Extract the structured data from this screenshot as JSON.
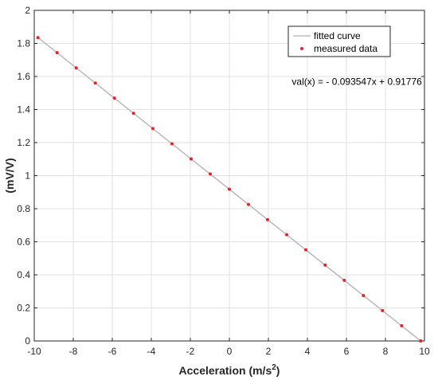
{
  "chart_data": {
    "type": "scatter",
    "title": "",
    "xlabel": "Acceleration (m/s",
    "xlabel_sup": "2",
    "xlabel_close": ")",
    "ylabel": "(mV/V)",
    "xlim": [
      -10,
      10
    ],
    "ylim": [
      0,
      2
    ],
    "xticks": [
      -10,
      -8,
      -6,
      -4,
      -2,
      0,
      2,
      4,
      6,
      8,
      10
    ],
    "yticks": [
      0,
      0.2,
      0.4,
      0.6,
      0.8,
      1,
      1.2,
      1.4,
      1.6,
      1.8,
      2
    ],
    "xtick_labels": [
      "-10",
      "-8",
      "-6",
      "-4",
      "-2",
      "0",
      "2",
      "4",
      "6",
      "8",
      "10"
    ],
    "ytick_labels": [
      "0",
      "0.2",
      "0.4",
      "0.6",
      "0.8",
      "1",
      "1.2",
      "1.4",
      "1.6",
      "1.8",
      "2"
    ],
    "grid": true,
    "legend_position": "top-right",
    "series": [
      {
        "name": "fitted curve",
        "kind": "line",
        "color": "#b0b0b0",
        "x": [
          -9.81,
          9.81
        ],
        "y": [
          1.8355,
          0.0
        ]
      },
      {
        "name": "measured data",
        "kind": "scatter",
        "color": "#e8202a",
        "x": [
          -9.81,
          -8.83,
          -7.85,
          -6.87,
          -5.89,
          -4.91,
          -3.92,
          -2.94,
          -1.96,
          -0.98,
          0,
          0.98,
          1.96,
          2.94,
          3.92,
          4.91,
          5.89,
          6.87,
          7.85,
          8.83,
          9.81
        ],
        "y": [
          1.835,
          1.744,
          1.652,
          1.56,
          1.469,
          1.377,
          1.285,
          1.193,
          1.101,
          1.01,
          0.918,
          0.826,
          0.734,
          0.643,
          0.551,
          0.459,
          0.367,
          0.275,
          0.184,
          0.092,
          0.0
        ]
      }
    ],
    "annotations": [
      {
        "text": "val(x) = - 0.093547x + 0.91776",
        "x": 3.2,
        "y": 1.55
      }
    ]
  }
}
